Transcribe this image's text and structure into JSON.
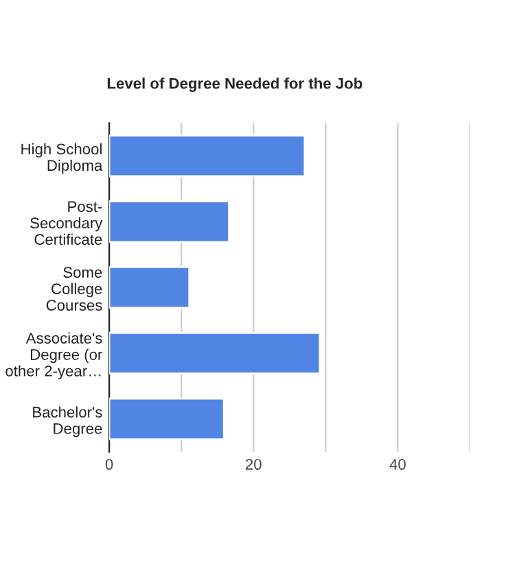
{
  "chart_data": {
    "type": "bar",
    "orientation": "horizontal",
    "title": "Level of Degree Needed for the Job",
    "categories": [
      "High School\nDiploma",
      "Post-\nSecondary\nCertificate",
      "Some\nCollege\nCourses",
      "Associate's\nDegree (or\nother 2-year…",
      "Bachelor's\nDegree"
    ],
    "values": [
      27.1,
      16.6,
      11.1,
      29.2,
      15.9
    ],
    "color": "#5185e4",
    "xlim": [
      0,
      50
    ],
    "xticks": [
      0,
      {
        "value": 10,
        "label": null
      },
      20,
      {
        "value": 30,
        "label": null
      },
      40,
      {
        "value": 50,
        "label": null
      }
    ],
    "grid": "x",
    "legend": false
  }
}
